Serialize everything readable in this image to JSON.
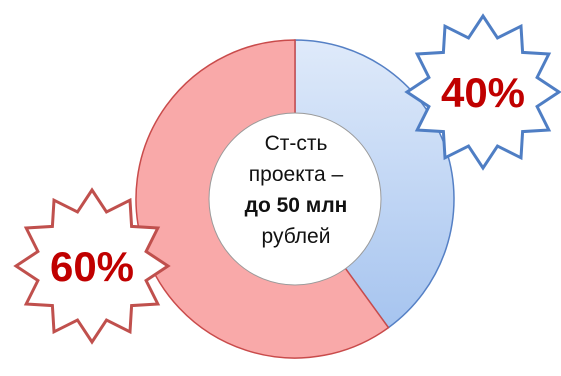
{
  "chart_data": {
    "type": "pie",
    "variant": "donut",
    "slices": [
      {
        "value": 40,
        "label": "40%",
        "fill_light": "#dfeafa",
        "fill_dark": "#a6c4ef",
        "stroke": "#5580c5"
      },
      {
        "value": 60,
        "label": "60%",
        "fill_light": "#f9a9a9",
        "fill_dark": "#f9a9a9",
        "stroke": "#c94b4b"
      }
    ],
    "center_lines": [
      {
        "text": "Ст-сть",
        "bold": false
      },
      {
        "text": "проекта –",
        "bold": false
      },
      {
        "text": "до 50 млн",
        "bold": true
      },
      {
        "text": "рублей",
        "bold": false
      }
    ],
    "badges": [
      {
        "text": "40%",
        "stroke": "#4f7ec4",
        "text_color": "#c00000"
      },
      {
        "text": "60%",
        "stroke": "#c0504d",
        "text_color": "#c00000"
      }
    ]
  }
}
